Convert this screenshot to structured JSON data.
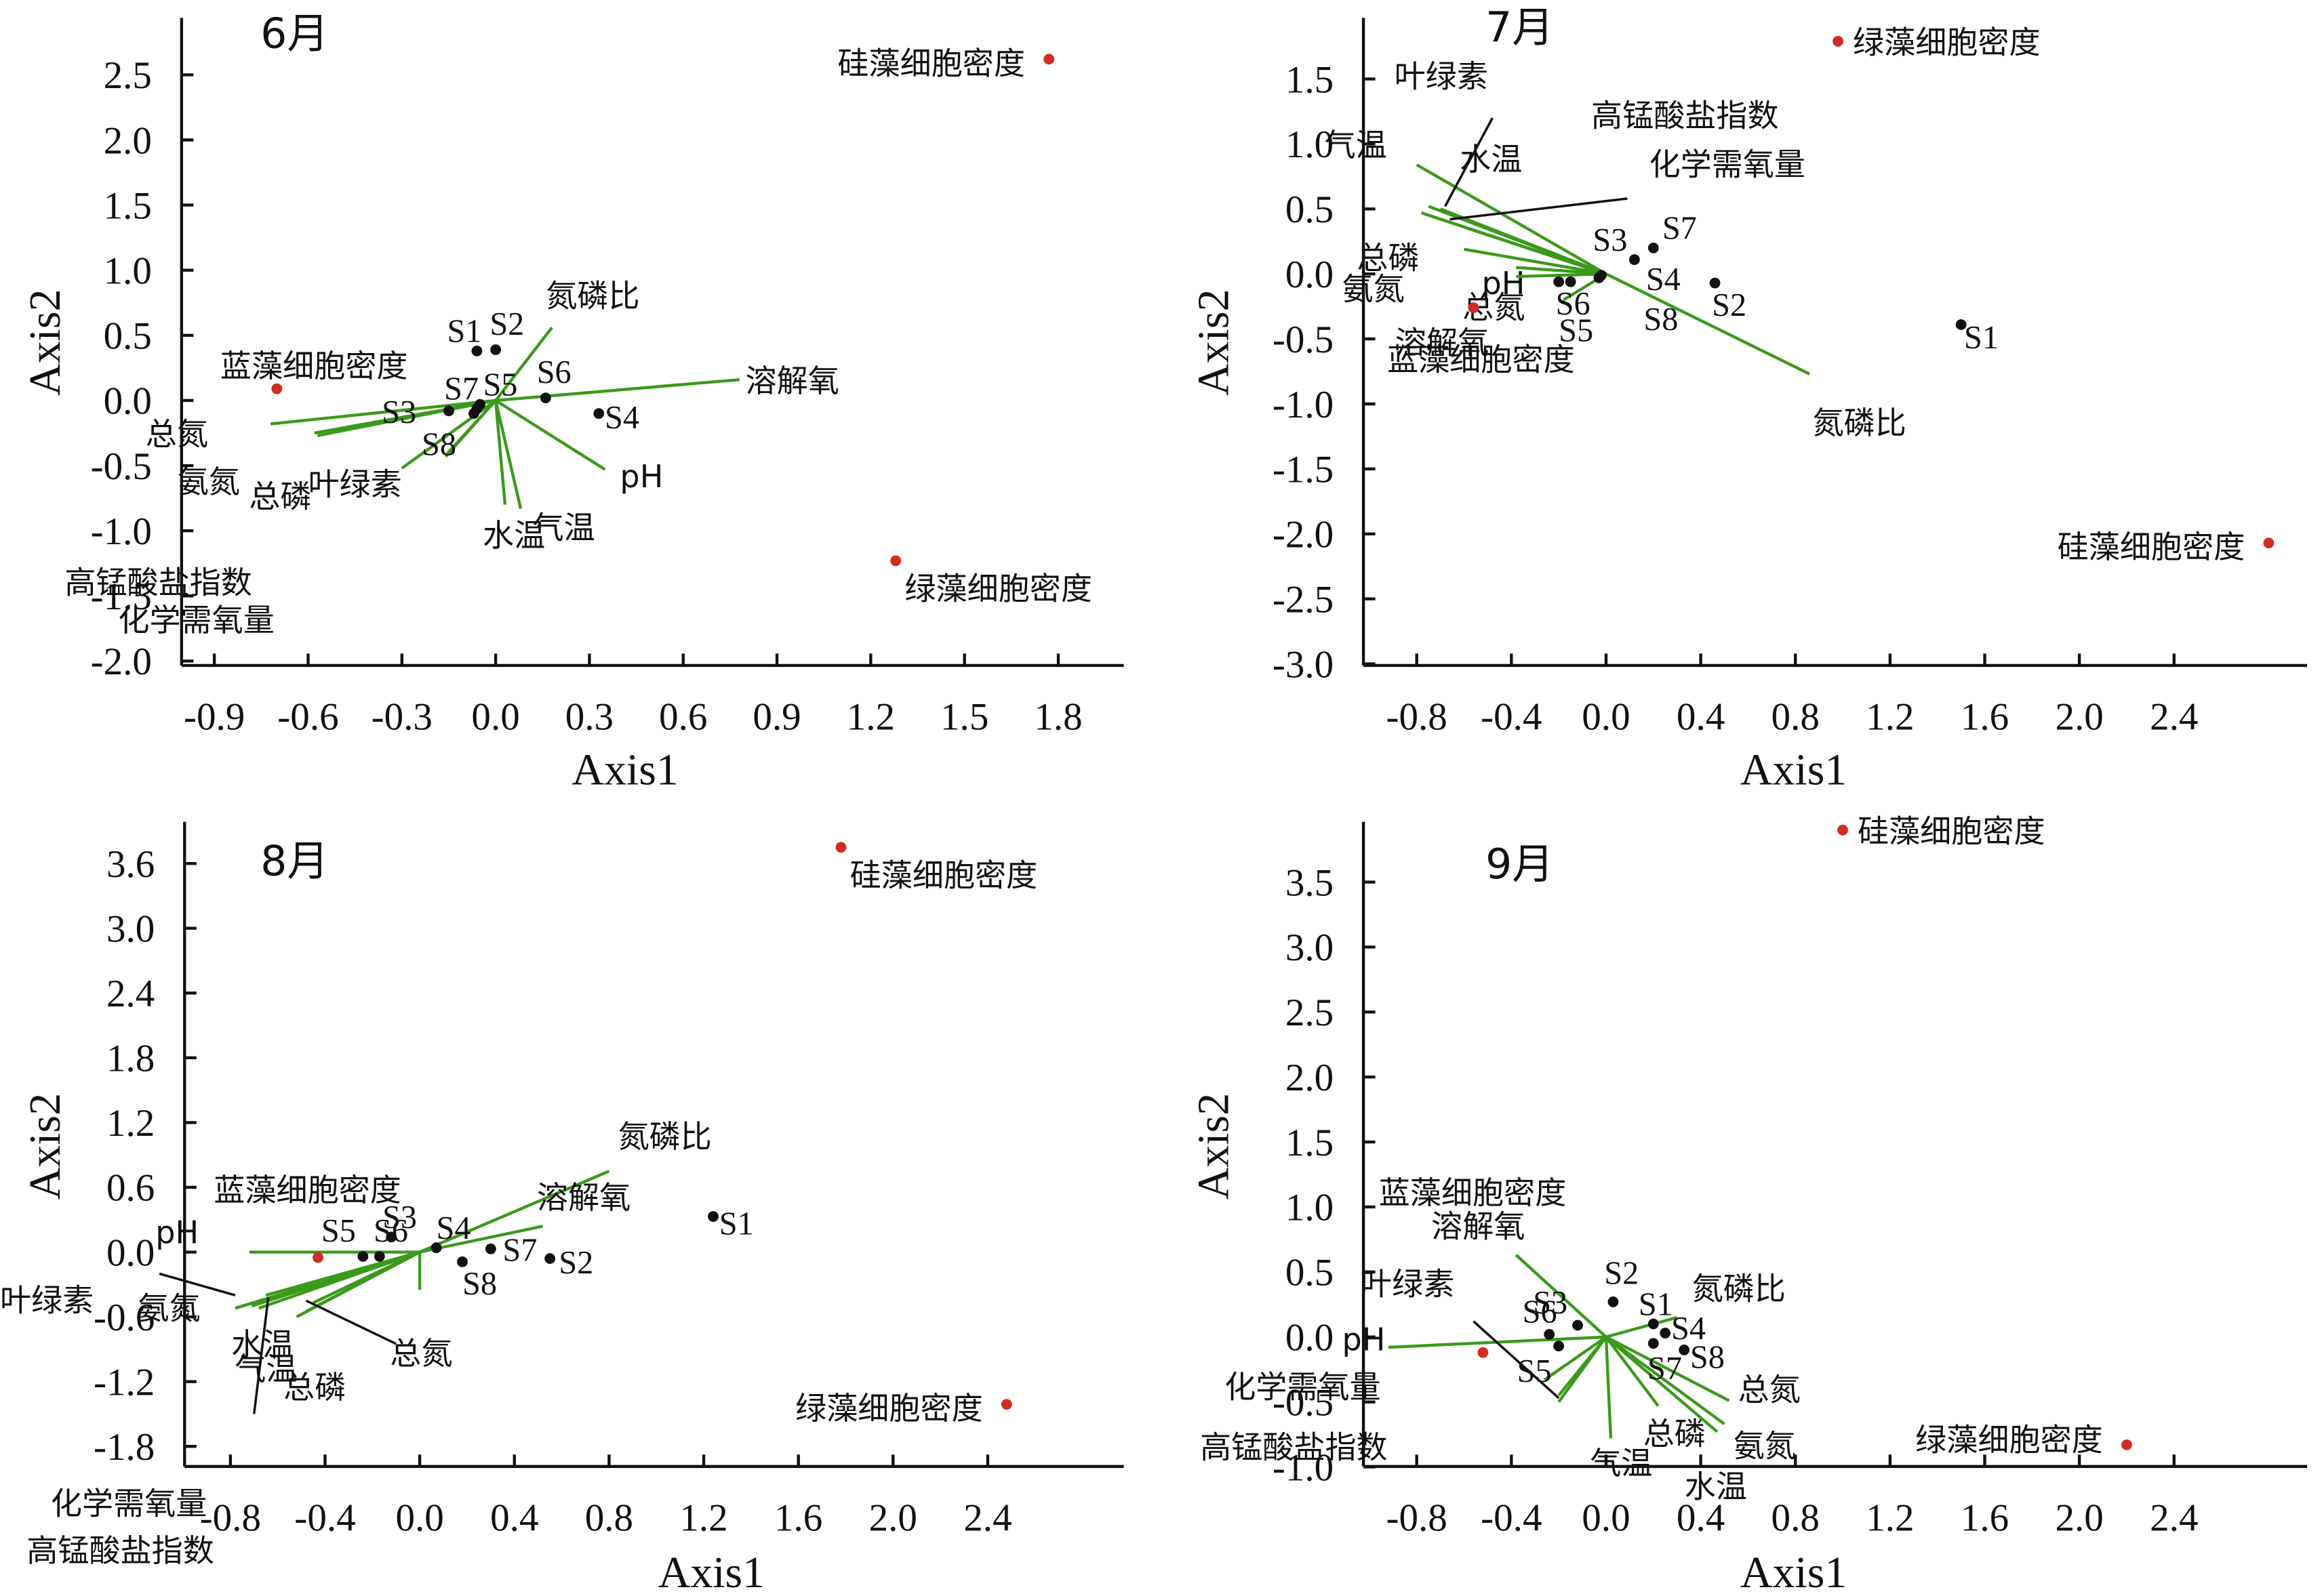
{
  "chart_data": [
    {
      "type": "scatter",
      "title": "6月",
      "xlabel": "Axis1",
      "ylabel": "Axis2",
      "xticks": [
        "-0.9",
        "-0.6",
        "-0.3",
        "0.0",
        "0.3",
        "0.6",
        "0.9",
        "1.2",
        "1.5",
        "1.8"
      ],
      "yticks": [
        "2.5",
        "2.0",
        "1.5",
        "1.0",
        "0.5",
        "0.0",
        "-0.5",
        "-1.0",
        "-1.5",
        "-2.0"
      ],
      "xlim": [
        -1.0,
        2.0
      ],
      "ylim": [
        -2.0,
        2.9
      ],
      "sites": [
        {
          "name": "S1",
          "x": -0.06,
          "y": 0.38
        },
        {
          "name": "S2",
          "x": 0.0,
          "y": 0.39
        },
        {
          "name": "S3",
          "x": -0.15,
          "y": -0.08
        },
        {
          "name": "S4",
          "x": 0.33,
          "y": -0.1
        },
        {
          "name": "S5",
          "x": -0.05,
          "y": -0.03
        },
        {
          "name": "S6",
          "x": 0.16,
          "y": 0.02
        },
        {
          "name": "S7",
          "x": -0.06,
          "y": -0.06
        },
        {
          "name": "S8",
          "x": -0.07,
          "y": -0.1
        }
      ],
      "species": [
        {
          "name": "硅藻细胞密度",
          "x": 1.77,
          "y": 2.62
        },
        {
          "name": "绿藻细胞密度",
          "x": 1.28,
          "y": -1.23
        },
        {
          "name": "蓝藻细胞密度",
          "x": -0.7,
          "y": 0.09
        }
      ],
      "env_vectors": [
        {
          "name": "总氮",
          "x": -0.72,
          "y": -0.18
        },
        {
          "name": "氨氮",
          "x": -0.58,
          "y": -0.25
        },
        {
          "name": "总磷",
          "x": -0.57,
          "y": -0.27
        },
        {
          "name": "叶绿素",
          "x": -0.3,
          "y": -0.52
        },
        {
          "name": "高锰酸盐指数",
          "x": -0.16,
          "y": -0.43
        },
        {
          "name": "化学需氧量",
          "x": -0.16,
          "y": -0.42
        },
        {
          "name": "水温",
          "x": 0.03,
          "y": -0.8
        },
        {
          "name": "气温",
          "x": 0.08,
          "y": -0.83
        },
        {
          "name": "pH",
          "x": 0.35,
          "y": -0.53
        },
        {
          "name": "溶解氧",
          "x": 0.78,
          "y": 0.16
        },
        {
          "name": "氮磷比",
          "x": 0.18,
          "y": 0.56
        }
      ]
    },
    {
      "type": "scatter",
      "title": "7月",
      "xlabel": "Axis1",
      "ylabel": "Axis2",
      "xticks": [
        "-0.8",
        "-0.4",
        "0.0",
        "0.4",
        "0.8",
        "1.2",
        "1.6",
        "2.0",
        "2.4"
      ],
      "yticks": [
        "1.5",
        "1.0",
        "0.5",
        "0.0",
        "-0.5",
        "-1.0",
        "-1.5",
        "-2.0",
        "-2.5",
        "-3.0"
      ],
      "xlim": [
        -1.0,
        3.0
      ],
      "ylim": [
        -3.0,
        2.0
      ],
      "sites": [
        {
          "name": "S1",
          "x": 1.5,
          "y": -0.39
        },
        {
          "name": "S2",
          "x": 0.46,
          "y": -0.07
        },
        {
          "name": "S3",
          "x": 0.12,
          "y": 0.11
        },
        {
          "name": "S4",
          "x": -0.02,
          "y": -0.01
        },
        {
          "name": "S5",
          "x": -0.2,
          "y": -0.06
        },
        {
          "name": "S6",
          "x": -0.15,
          "y": -0.06
        },
        {
          "name": "S7",
          "x": 0.2,
          "y": 0.2
        },
        {
          "name": "S8",
          "x": -0.03,
          "y": -0.03
        }
      ],
      "species": [
        {
          "name": "绿藻细胞密度",
          "x": 0.98,
          "y": 1.79
        },
        {
          "name": "硅藻细胞密度",
          "x": 2.8,
          "y": -2.07
        },
        {
          "name": "蓝藻细胞密度",
          "x": -0.56,
          "y": -0.26
        }
      ],
      "env_vectors": [
        {
          "name": "气温",
          "x": -0.8,
          "y": 0.84
        },
        {
          "name": "叶绿素",
          "x": -0.75,
          "y": 0.52
        },
        {
          "name": "水温",
          "x": -0.7,
          "y": 0.5
        },
        {
          "name": "总磷",
          "x": -0.6,
          "y": 0.36
        },
        {
          "name": "高锰酸盐指数",
          "x": -0.78,
          "y": 0.47
        },
        {
          "name": "化学需氧量",
          "x": -0.73,
          "y": 0.44
        },
        {
          "name": "氨氮",
          "x": -0.6,
          "y": 0.19
        },
        {
          "name": "pH",
          "x": -0.38,
          "y": 0.05
        },
        {
          "name": "总氮",
          "x": -0.38,
          "y": -0.02
        },
        {
          "name": "溶解氧",
          "x": -0.18,
          "y": -0.2
        },
        {
          "name": "氮磷比",
          "x": 0.86,
          "y": -0.77
        }
      ]
    },
    {
      "type": "scatter",
      "title": "8月",
      "xlabel": "Axis1",
      "ylabel": "Axis2",
      "xticks": [
        "-0.8",
        "-0.4",
        "0.0",
        "0.4",
        "0.8",
        "1.2",
        "1.6",
        "2.0",
        "2.4"
      ],
      "yticks": [
        "3.6",
        "3.0",
        "2.4",
        "1.8",
        "1.2",
        "0.6",
        "0.0",
        "-0.6",
        "-1.2",
        "-1.8"
      ],
      "xlim": [
        -1.0,
        3.0
      ],
      "ylim": [
        -2.0,
        4.0
      ],
      "sites": [
        {
          "name": "S1",
          "x": 1.24,
          "y": 0.33
        },
        {
          "name": "S2",
          "x": 0.55,
          "y": -0.06
        },
        {
          "name": "S3",
          "x": -0.12,
          "y": 0.14
        },
        {
          "name": "S4",
          "x": 0.07,
          "y": 0.04
        },
        {
          "name": "S5",
          "x": -0.24,
          "y": -0.04
        },
        {
          "name": "S6",
          "x": -0.17,
          "y": -0.04
        },
        {
          "name": "S7",
          "x": 0.3,
          "y": 0.03
        },
        {
          "name": "S8",
          "x": 0.18,
          "y": -0.09
        }
      ],
      "species": [
        {
          "name": "硅藻细胞密度",
          "x": 1.78,
          "y": 3.75
        },
        {
          "name": "绿藻细胞密度",
          "x": 2.48,
          "y": -1.41
        },
        {
          "name": "蓝藻细胞密度",
          "x": -0.43,
          "y": -0.05
        }
      ],
      "env_vectors": [
        {
          "name": "氮磷比",
          "x": 0.8,
          "y": 0.75
        },
        {
          "name": "溶解氧",
          "x": 0.52,
          "y": 0.24
        },
        {
          "name": "pH",
          "x": -0.72,
          "y": 0.0
        },
        {
          "name": "总氮",
          "x": 0.0,
          "y": -0.35
        },
        {
          "name": "氨氮",
          "x": -0.65,
          "y": -0.4
        },
        {
          "name": "叶绿素",
          "x": -0.78,
          "y": -0.52
        },
        {
          "name": "化学需氧量",
          "x": -0.71,
          "y": -0.5
        },
        {
          "name": "高锰酸盐指数",
          "x": -0.68,
          "y": -0.52
        },
        {
          "name": "水温",
          "x": -0.52,
          "y": -0.6
        },
        {
          "name": "气温",
          "x": -0.48,
          "y": -0.55
        },
        {
          "name": "总磷",
          "x": -0.45,
          "y": -0.47
        }
      ]
    },
    {
      "type": "scatter",
      "title": "9月",
      "xlabel": "Axis1",
      "ylabel": "Axis2",
      "xticks": [
        "-0.8",
        "-0.4",
        "0.0",
        "0.4",
        "0.8",
        "1.2",
        "1.6",
        "2.0",
        "2.4"
      ],
      "yticks": [
        "3.5",
        "3.0",
        "2.5",
        "2.0",
        "1.5",
        "1.0",
        "0.5",
        "0.0",
        "-0.5",
        "-1.0"
      ],
      "xlim": [
        -1.0,
        3.0
      ],
      "ylim": [
        -1.0,
        4.0
      ],
      "sites": [
        {
          "name": "S1",
          "x": 0.2,
          "y": 0.1
        },
        {
          "name": "S2",
          "x": 0.03,
          "y": 0.27
        },
        {
          "name": "S3",
          "x": -0.12,
          "y": 0.09
        },
        {
          "name": "S4",
          "x": 0.25,
          "y": 0.03
        },
        {
          "name": "S5",
          "x": -0.2,
          "y": -0.07
        },
        {
          "name": "S6",
          "x": -0.24,
          "y": 0.02
        },
        {
          "name": "S7",
          "x": 0.2,
          "y": -0.05
        },
        {
          "name": "S8",
          "x": 0.33,
          "y": -0.1
        }
      ],
      "species": [
        {
          "name": "硅藻细胞密度",
          "x": 1.0,
          "y": 3.9
        },
        {
          "name": "绿藻细胞密度",
          "x": 2.2,
          "y": -0.83
        },
        {
          "name": "蓝藻细胞密度",
          "x": -0.52,
          "y": -0.12
        }
      ],
      "env_vectors": [
        {
          "name": "pH",
          "x": -0.92,
          "y": -0.08
        },
        {
          "name": "溶解氧",
          "x": -0.38,
          "y": 0.63
        },
        {
          "name": "氮磷比",
          "x": 0.3,
          "y": 0.15
        },
        {
          "name": "叶绿素",
          "x": -0.2,
          "y": -0.5
        },
        {
          "name": "化学需氧量",
          "x": -0.26,
          "y": -0.33
        },
        {
          "name": "高锰酸盐指数",
          "x": -0.2,
          "y": -0.45
        },
        {
          "name": "气温",
          "x": 0.02,
          "y": -0.78
        },
        {
          "name": "总磷",
          "x": 0.22,
          "y": -0.53
        },
        {
          "name": "水温",
          "x": 0.47,
          "y": -0.73
        },
        {
          "name": "氨氮",
          "x": 0.5,
          "y": -0.67
        },
        {
          "name": "总氮",
          "x": 0.52,
          "y": -0.49
        }
      ]
    }
  ],
  "colors": {
    "env_vector": "#3a9a1a",
    "species_point": "#d42a20",
    "site_point": "#111111"
  },
  "legend": "none",
  "grid": false
}
